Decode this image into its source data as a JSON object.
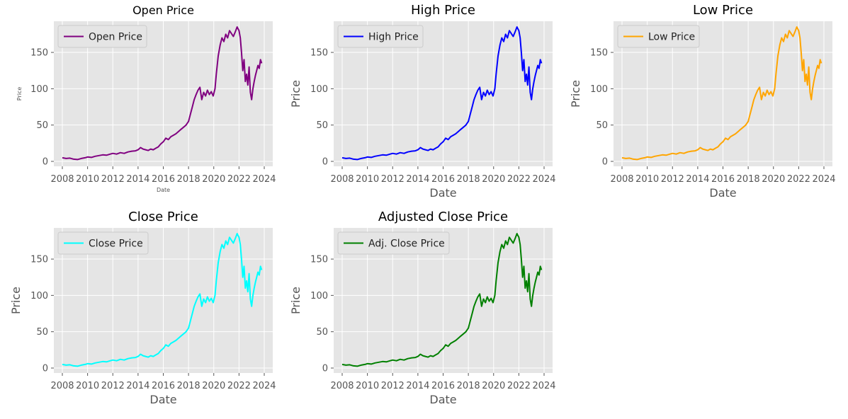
{
  "chart_data": [
    {
      "type": "line",
      "title": "Open Price",
      "xlabel": "Date",
      "ylabel": "Price",
      "legend": "top-left",
      "grid": true,
      "xlim": [
        2008,
        2024
      ],
      "ylim": [
        0,
        190
      ],
      "x_ticks": [
        "2008",
        "2010",
        "2012",
        "2014",
        "2016",
        "2018",
        "2020",
        "2022",
        "2024"
      ],
      "y_ticks": [
        "0",
        "50",
        "100",
        "150"
      ],
      "series": [
        {
          "name": "Open Price",
          "color": "#800080"
        }
      ]
    },
    {
      "type": "line",
      "title": "High Price",
      "xlabel": "Date",
      "ylabel": "Price",
      "legend": "top-left",
      "grid": true,
      "xlim": [
        2008,
        2024
      ],
      "ylim": [
        0,
        190
      ],
      "x_ticks": [
        "2008",
        "2010",
        "2012",
        "2014",
        "2016",
        "2018",
        "2020",
        "2022",
        "2024"
      ],
      "y_ticks": [
        "0",
        "50",
        "100",
        "150"
      ],
      "series": [
        {
          "name": "High Price",
          "color": "#0000ff"
        }
      ]
    },
    {
      "type": "line",
      "title": "Low Price",
      "xlabel": "Date",
      "ylabel": "Price",
      "legend": "top-left",
      "grid": true,
      "xlim": [
        2008,
        2024
      ],
      "ylim": [
        0,
        190
      ],
      "x_ticks": [
        "2008",
        "2010",
        "2012",
        "2014",
        "2016",
        "2018",
        "2020",
        "2022",
        "2024"
      ],
      "y_ticks": [
        "0",
        "50",
        "100",
        "150"
      ],
      "series": [
        {
          "name": "Low Price",
          "color": "#ffa500"
        }
      ]
    },
    {
      "type": "line",
      "title": "Close Price",
      "xlabel": "Date",
      "ylabel": "Price",
      "legend": "top-left",
      "grid": true,
      "xlim": [
        2008,
        2024
      ],
      "ylim": [
        0,
        190
      ],
      "x_ticks": [
        "2008",
        "2010",
        "2012",
        "2014",
        "2016",
        "2018",
        "2020",
        "2022",
        "2024"
      ],
      "y_ticks": [
        "0",
        "50",
        "100",
        "150"
      ],
      "series": [
        {
          "name": "Close Price",
          "color": "#00ffff"
        }
      ]
    },
    {
      "type": "line",
      "title": "Adjusted Close Price",
      "xlabel": "Date",
      "ylabel": "Price",
      "legend": "top-left",
      "grid": true,
      "xlim": [
        2008,
        2024
      ],
      "ylim": [
        0,
        190
      ],
      "x_ticks": [
        "2008",
        "2010",
        "2012",
        "2014",
        "2016",
        "2018",
        "2020",
        "2022",
        "2024"
      ],
      "y_ticks": [
        "0",
        "50",
        "100",
        "150"
      ],
      "series": [
        {
          "name": "Adj. Close Price",
          "color": "#008000"
        }
      ]
    }
  ],
  "price_path": {
    "x": [
      2008.0,
      2008.3,
      2008.6,
      2008.9,
      2009.2,
      2009.5,
      2009.8,
      2010.0,
      2010.3,
      2010.6,
      2010.9,
      2011.2,
      2011.5,
      2011.8,
      2012.0,
      2012.3,
      2012.6,
      2012.9,
      2013.2,
      2013.5,
      2013.8,
      2014.0,
      2014.2,
      2014.4,
      2014.6,
      2014.8,
      2015.0,
      2015.2,
      2015.4,
      2015.6,
      2015.8,
      2016.0,
      2016.2,
      2016.4,
      2016.6,
      2016.8,
      2017.0,
      2017.2,
      2017.4,
      2017.6,
      2017.8,
      2018.0,
      2018.15,
      2018.3,
      2018.45,
      2018.6,
      2018.75,
      2018.9,
      2019.05,
      2019.2,
      2019.35,
      2019.5,
      2019.65,
      2019.8,
      2019.95,
      2020.1,
      2020.2,
      2020.35,
      2020.5,
      2020.65,
      2020.8,
      2020.95,
      2021.1,
      2021.25,
      2021.4,
      2021.55,
      2021.7,
      2021.85,
      2022.0,
      2022.1,
      2022.2,
      2022.3,
      2022.4,
      2022.5,
      2022.6,
      2022.7,
      2022.8,
      2022.9,
      2023.0,
      2023.1,
      2023.2,
      2023.3,
      2023.4,
      2023.5,
      2023.6,
      2023.7,
      2023.8
    ],
    "y": [
      5,
      4,
      4.5,
      3,
      2.5,
      4,
      5,
      6,
      5.5,
      7,
      8,
      9,
      8.5,
      10,
      11,
      10,
      12,
      11,
      13,
      14,
      14.5,
      16,
      19,
      17,
      16,
      15,
      17,
      16,
      18,
      20,
      24,
      27,
      32,
      30,
      34,
      36,
      38,
      41,
      44,
      47,
      50,
      55,
      65,
      75,
      85,
      92,
      98,
      102,
      85,
      95,
      90,
      98,
      92,
      96,
      90,
      100,
      120,
      145,
      160,
      170,
      165,
      175,
      170,
      180,
      176,
      172,
      178,
      185,
      180,
      170,
      150,
      125,
      140,
      110,
      120,
      105,
      130,
      95,
      85,
      100,
      110,
      118,
      125,
      132,
      128,
      140,
      135
    ]
  }
}
